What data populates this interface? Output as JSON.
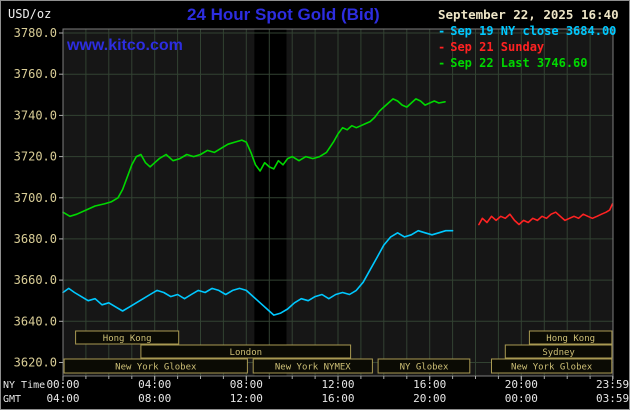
{
  "window": {
    "background": "#000000",
    "border_color": "#8f8f8f"
  },
  "header": {
    "unit_label": "USD/oz",
    "title": "24 Hour Spot Gold (Bid)",
    "title_color": "#2d2de0",
    "date_text": "September 22, 2025 16:40",
    "watermark": "www.kitco.com"
  },
  "legend": {
    "dash_char": "-",
    "items": [
      {
        "label": "Sep 19 NY close 3684.00",
        "color": "#00c8ff"
      },
      {
        "label": "Sep 21 Sunday",
        "color": "#ff2222"
      },
      {
        "label": "Sep 22 Last 3746.60",
        "color": "#00d800"
      }
    ]
  },
  "axes": {
    "ny_time_label": "NY Time",
    "gmt_label": "GMT"
  },
  "chart_data": {
    "type": "line",
    "title": "24 Hour Spot Gold (Bid)",
    "xlabel": "NY Time",
    "ylabel": "USD/oz",
    "xlim": [
      0,
      24
    ],
    "ylim": [
      3620,
      3780
    ],
    "grid": true,
    "plot_bg": "#161616",
    "grid_color": "#324232",
    "border_color": "#7d7d7d",
    "tick_color": "#aaaaaa",
    "shaded_bands": [
      {
        "start_hour": 8.35,
        "end_hour": 9.75,
        "color": "#000000"
      }
    ],
    "y_ticks": [
      {
        "value": 3620,
        "label": "3620.0"
      },
      {
        "value": 3640,
        "label": "3640.0"
      },
      {
        "value": 3660,
        "label": "3660.0"
      },
      {
        "value": 3680,
        "label": "3680.0"
      },
      {
        "value": 3700,
        "label": "3700.0"
      },
      {
        "value": 3720,
        "label": "3720.0"
      },
      {
        "value": 3740,
        "label": "3740.0"
      },
      {
        "value": 3760,
        "label": "3760.0"
      },
      {
        "value": 3780,
        "label": "3780.0"
      }
    ],
    "x_ticks": [
      {
        "hour": 0,
        "ny": "00:00",
        "gmt": "04:00"
      },
      {
        "hour": 4,
        "ny": "04:00",
        "gmt": "08:00"
      },
      {
        "hour": 8,
        "ny": "08:00",
        "gmt": "12:00"
      },
      {
        "hour": 12,
        "ny": "12:00",
        "gmt": "16:00"
      },
      {
        "hour": 16,
        "ny": "16:00",
        "gmt": "20:00"
      },
      {
        "hour": 20,
        "ny": "20:00",
        "gmt": "00:00"
      },
      {
        "hour": 23.983,
        "ny": "23:59",
        "gmt": "03:59"
      }
    ],
    "series": [
      {
        "name": "Sep 19 NY close",
        "close": 3684.0,
        "color": "#00c8ff",
        "points": [
          [
            0,
            3654
          ],
          [
            0.25,
            3656
          ],
          [
            0.5,
            3654
          ],
          [
            0.8,
            3652
          ],
          [
            1.1,
            3650
          ],
          [
            1.4,
            3651
          ],
          [
            1.7,
            3648
          ],
          [
            2.0,
            3649
          ],
          [
            2.3,
            3647
          ],
          [
            2.6,
            3645
          ],
          [
            2.9,
            3647
          ],
          [
            3.2,
            3649
          ],
          [
            3.5,
            3651
          ],
          [
            3.8,
            3653
          ],
          [
            4.1,
            3655
          ],
          [
            4.4,
            3654
          ],
          [
            4.7,
            3652
          ],
          [
            5.0,
            3653
          ],
          [
            5.3,
            3651
          ],
          [
            5.6,
            3653
          ],
          [
            5.9,
            3655
          ],
          [
            6.2,
            3654
          ],
          [
            6.5,
            3656
          ],
          [
            6.8,
            3655
          ],
          [
            7.1,
            3653
          ],
          [
            7.4,
            3655
          ],
          [
            7.7,
            3656
          ],
          [
            8.0,
            3655
          ],
          [
            8.3,
            3652
          ],
          [
            8.6,
            3649
          ],
          [
            8.9,
            3646
          ],
          [
            9.2,
            3643
          ],
          [
            9.5,
            3644
          ],
          [
            9.8,
            3646
          ],
          [
            10.1,
            3649
          ],
          [
            10.4,
            3651
          ],
          [
            10.7,
            3650
          ],
          [
            11.0,
            3652
          ],
          [
            11.3,
            3653
          ],
          [
            11.6,
            3651
          ],
          [
            11.9,
            3653
          ],
          [
            12.2,
            3654
          ],
          [
            12.5,
            3653
          ],
          [
            12.8,
            3655
          ],
          [
            13.1,
            3659
          ],
          [
            13.4,
            3665
          ],
          [
            13.7,
            3671
          ],
          [
            14.0,
            3677
          ],
          [
            14.3,
            3681
          ],
          [
            14.6,
            3683
          ],
          [
            14.9,
            3681
          ],
          [
            15.2,
            3682
          ],
          [
            15.5,
            3684
          ],
          [
            15.8,
            3683
          ],
          [
            16.1,
            3682
          ],
          [
            16.4,
            3683
          ],
          [
            16.7,
            3684
          ],
          [
            17.0,
            3684
          ]
        ]
      },
      {
        "name": "Sep 21 Sunday",
        "color": "#ff2222",
        "points": [
          [
            18.15,
            3687
          ],
          [
            18.3,
            3690
          ],
          [
            18.5,
            3688
          ],
          [
            18.7,
            3691
          ],
          [
            18.9,
            3689
          ],
          [
            19.1,
            3691
          ],
          [
            19.3,
            3690
          ],
          [
            19.5,
            3692
          ],
          [
            19.7,
            3689
          ],
          [
            19.9,
            3687
          ],
          [
            20.1,
            3689
          ],
          [
            20.3,
            3688
          ],
          [
            20.5,
            3690
          ],
          [
            20.7,
            3689
          ],
          [
            20.9,
            3691
          ],
          [
            21.1,
            3690
          ],
          [
            21.3,
            3692
          ],
          [
            21.5,
            3693
          ],
          [
            21.7,
            3691
          ],
          [
            21.9,
            3689
          ],
          [
            22.1,
            3690
          ],
          [
            22.3,
            3691
          ],
          [
            22.5,
            3690
          ],
          [
            22.7,
            3692
          ],
          [
            22.9,
            3691
          ],
          [
            23.1,
            3690
          ],
          [
            23.3,
            3691
          ],
          [
            23.5,
            3692
          ],
          [
            23.7,
            3693
          ],
          [
            23.85,
            3694
          ],
          [
            23.98,
            3697
          ]
        ]
      },
      {
        "name": "Sep 22 Last",
        "last": 3746.6,
        "color": "#00d800",
        "points": [
          [
            0,
            3693
          ],
          [
            0.3,
            3691
          ],
          [
            0.6,
            3692
          ],
          [
            1.0,
            3694
          ],
          [
            1.4,
            3696
          ],
          [
            1.8,
            3697
          ],
          [
            2.1,
            3698
          ],
          [
            2.4,
            3700
          ],
          [
            2.6,
            3704
          ],
          [
            2.8,
            3710
          ],
          [
            3.0,
            3716
          ],
          [
            3.2,
            3720
          ],
          [
            3.4,
            3721
          ],
          [
            3.6,
            3717
          ],
          [
            3.8,
            3715
          ],
          [
            4.0,
            3717
          ],
          [
            4.2,
            3719
          ],
          [
            4.5,
            3721
          ],
          [
            4.8,
            3718
          ],
          [
            5.1,
            3719
          ],
          [
            5.4,
            3721
          ],
          [
            5.7,
            3720
          ],
          [
            6.0,
            3721
          ],
          [
            6.3,
            3723
          ],
          [
            6.6,
            3722
          ],
          [
            6.9,
            3724
          ],
          [
            7.2,
            3726
          ],
          [
            7.5,
            3727
          ],
          [
            7.8,
            3728
          ],
          [
            8.0,
            3727
          ],
          [
            8.2,
            3722
          ],
          [
            8.4,
            3716
          ],
          [
            8.6,
            3713
          ],
          [
            8.8,
            3717
          ],
          [
            9.0,
            3715
          ],
          [
            9.2,
            3714
          ],
          [
            9.4,
            3718
          ],
          [
            9.6,
            3716
          ],
          [
            9.8,
            3719
          ],
          [
            10.0,
            3720
          ],
          [
            10.3,
            3718
          ],
          [
            10.6,
            3720
          ],
          [
            10.9,
            3719
          ],
          [
            11.2,
            3720
          ],
          [
            11.5,
            3722
          ],
          [
            11.8,
            3727
          ],
          [
            12.0,
            3731
          ],
          [
            12.2,
            3734
          ],
          [
            12.4,
            3733
          ],
          [
            12.6,
            3735
          ],
          [
            12.8,
            3734
          ],
          [
            13.0,
            3735
          ],
          [
            13.2,
            3736
          ],
          [
            13.4,
            3737
          ],
          [
            13.6,
            3739
          ],
          [
            13.8,
            3742
          ],
          [
            14.0,
            3744
          ],
          [
            14.2,
            3746
          ],
          [
            14.4,
            3748
          ],
          [
            14.6,
            3747
          ],
          [
            14.8,
            3745
          ],
          [
            15.0,
            3744
          ],
          [
            15.2,
            3746
          ],
          [
            15.4,
            3748
          ],
          [
            15.6,
            3747
          ],
          [
            15.8,
            3745
          ],
          [
            16.0,
            3746
          ],
          [
            16.2,
            3747
          ],
          [
            16.4,
            3746
          ],
          [
            16.67,
            3746.6
          ]
        ]
      }
    ],
    "sessions": {
      "box_border_color": "#a99a52",
      "label_color": "#cdbf76",
      "rows": [
        [
          {
            "label": "Hong Kong",
            "start": 0.55,
            "end": 5.05
          },
          {
            "label": "Hong Kong",
            "start": 20.35,
            "end": 23.95
          }
        ],
        [
          {
            "label": "London",
            "start": 3.4,
            "end": 12.55
          },
          {
            "label": "Sydney",
            "start": 19.3,
            "end": 23.95
          }
        ],
        [
          {
            "label": "New York Globex",
            "start": 0.05,
            "end": 8.05
          },
          {
            "label": "New York NYMEX",
            "start": 8.3,
            "end": 13.5
          },
          {
            "label": "NY Globex",
            "start": 13.75,
            "end": 17.75
          },
          {
            "label": "New York Globex",
            "start": 18.7,
            "end": 23.95
          }
        ]
      ]
    }
  }
}
